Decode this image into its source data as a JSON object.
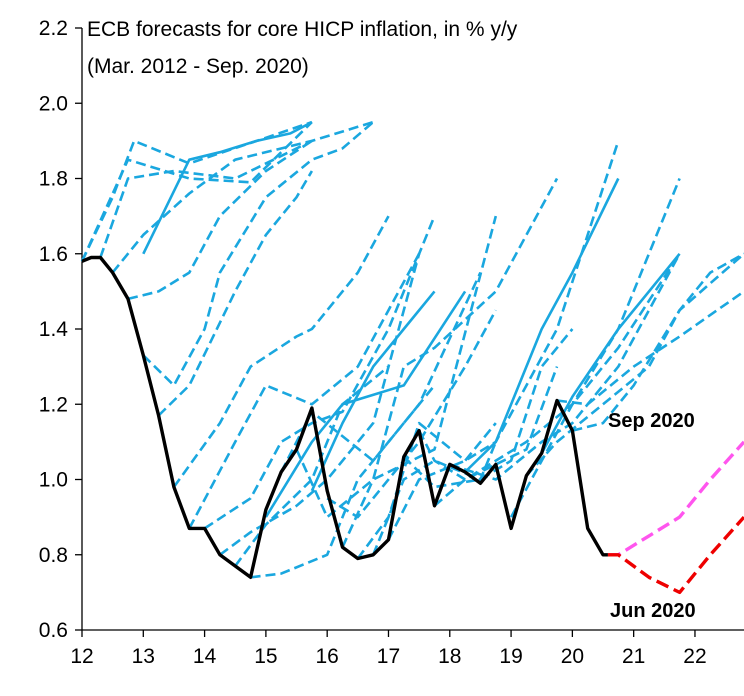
{
  "chart_data": {
    "type": "line",
    "title": "ECB forecasts for core HICP inflation, in % y/y",
    "subtitle": "(Mar. 2012 - Sep. 2020)",
    "xlim": [
      12,
      22.8
    ],
    "ylim": [
      0.6,
      2.2
    ],
    "x_ticks": [
      12,
      13,
      14,
      15,
      16,
      17,
      18,
      19,
      20,
      21,
      22
    ],
    "x_tick_labels": [
      "12",
      "13",
      "14",
      "15",
      "16",
      "17",
      "18",
      "19",
      "20",
      "21",
      "22"
    ],
    "y_ticks": [
      0.6,
      0.8,
      1.0,
      1.2,
      1.4,
      1.6,
      1.8,
      2.0,
      2.2
    ],
    "y_tick_labels": [
      "0.6",
      "0.8",
      "1.0",
      "1.2",
      "1.4",
      "1.6",
      "1.8",
      "2.0",
      "2.2"
    ],
    "grid": false,
    "colors": {
      "actual": "#000000",
      "forecast": "#1aa7df",
      "sep2020": "#ff55ee",
      "jun2020": "#ee0000"
    },
    "annotations": [
      {
        "text": "Sep 2020",
        "color": "#ff55ee"
      },
      {
        "text": "Jun 2020",
        "color": "#ee0000"
      }
    ],
    "series": [
      {
        "style": "actual",
        "x": [
          12.0,
          12.15,
          12.3,
          12.5,
          12.75,
          13.0,
          13.25,
          13.5,
          13.75,
          14.0,
          14.25,
          14.5,
          14.75,
          15.0,
          15.25,
          15.5,
          15.75,
          16.0,
          16.25,
          16.5,
          16.75,
          17.0,
          17.25,
          17.5,
          17.75,
          18.0,
          18.25,
          18.5,
          18.75,
          19.0,
          19.25,
          19.5,
          19.75,
          20.0,
          20.25,
          20.5,
          20.58
        ],
        "y": [
          1.58,
          1.59,
          1.59,
          1.55,
          1.48,
          1.33,
          1.17,
          0.98,
          0.87,
          0.87,
          0.8,
          0.77,
          0.74,
          0.92,
          1.02,
          1.08,
          1.19,
          0.97,
          0.82,
          0.79,
          0.8,
          0.84,
          1.06,
          1.13,
          0.93,
          1.04,
          1.02,
          0.99,
          1.04,
          0.87,
          1.01,
          1.07,
          1.21,
          1.13,
          0.87,
          0.8,
          0.8
        ]
      },
      {
        "style": "forecast-dashed",
        "x": [
          12.0,
          12.5,
          12.85,
          13.75,
          14.85,
          15.75
        ],
        "y": [
          1.58,
          1.75,
          1.9,
          1.84,
          1.9,
          1.95
        ]
      },
      {
        "style": "forecast-dashed",
        "x": [
          12.0,
          12.75,
          13.75,
          14.75,
          15.75
        ],
        "y": [
          1.58,
          1.85,
          1.8,
          1.79,
          1.95
        ]
      },
      {
        "style": "forecast-dashed",
        "x": [
          12.3,
          12.75,
          13.5,
          14.5,
          15.75
        ],
        "y": [
          1.59,
          1.8,
          1.82,
          1.8,
          1.9
        ]
      },
      {
        "style": "forecast-dashed",
        "x": [
          12.5,
          13.0,
          13.75,
          14.5,
          15.75,
          16.75
        ],
        "y": [
          1.55,
          1.65,
          1.76,
          1.85,
          1.9,
          1.95
        ]
      },
      {
        "style": "forecast-dashed",
        "x": [
          12.75,
          13.25,
          13.75,
          14.25,
          15.0,
          15.75
        ],
        "y": [
          1.48,
          1.5,
          1.55,
          1.7,
          1.82,
          1.9
        ]
      },
      {
        "style": "forecast-dashed",
        "x": [
          13.0,
          13.5,
          14.0,
          14.25,
          15.0,
          15.75,
          16.25,
          16.75
        ],
        "y": [
          1.33,
          1.25,
          1.4,
          1.55,
          1.75,
          1.85,
          1.88,
          1.95
        ]
      },
      {
        "style": "forecast-solid",
        "x": [
          13.0,
          13.75,
          14.25,
          14.85,
          15.4,
          15.75
        ],
        "y": [
          1.6,
          1.85,
          1.87,
          1.9,
          1.92,
          1.95
        ]
      },
      {
        "style": "forecast-dashed",
        "x": [
          13.25,
          13.75,
          14.5,
          15.0,
          15.5,
          15.75
        ],
        "y": [
          1.17,
          1.25,
          1.5,
          1.65,
          1.75,
          1.82
        ]
      },
      {
        "style": "forecast-dashed",
        "x": [
          13.5,
          14.25,
          14.75,
          15.5,
          15.75,
          16.5,
          17.0
        ],
        "y": [
          0.98,
          1.15,
          1.3,
          1.38,
          1.4,
          1.55,
          1.7
        ]
      },
      {
        "style": "forecast-dashed",
        "x": [
          13.75,
          14.5,
          15.0,
          15.75,
          16.5,
          17.0,
          17.5
        ],
        "y": [
          0.87,
          1.1,
          1.25,
          1.2,
          1.3,
          1.45,
          1.6
        ]
      },
      {
        "style": "forecast-dashed",
        "x": [
          14.0,
          14.75,
          15.25,
          15.75,
          16.25,
          17.0,
          17.75
        ],
        "y": [
          0.87,
          0.95,
          1.1,
          1.15,
          1.18,
          1.4,
          1.7
        ]
      },
      {
        "style": "forecast-dashed",
        "x": [
          14.25,
          14.75,
          15.5,
          16.0,
          16.75,
          17.5
        ],
        "y": [
          0.8,
          0.86,
          0.93,
          1.0,
          1.15,
          1.6
        ]
      },
      {
        "style": "forecast-dashed",
        "x": [
          14.5,
          15.0,
          15.75,
          16.25,
          17.0
        ],
        "y": [
          0.77,
          0.88,
          1.0,
          1.2,
          1.3
        ]
      },
      {
        "style": "forecast-dashed",
        "x": [
          14.75,
          15.25,
          16.0,
          16.5,
          17.25,
          17.75
        ],
        "y": [
          0.74,
          0.75,
          0.8,
          1.0,
          1.15,
          1.25
        ]
      },
      {
        "style": "forecast-solid",
        "x": [
          15.0,
          15.75,
          16.25,
          17.25,
          18.25
        ],
        "y": [
          0.9,
          1.1,
          1.2,
          1.25,
          1.5
        ]
      },
      {
        "style": "forecast-dashed",
        "x": [
          15.25,
          15.75,
          16.75,
          17.5,
          18.5
        ],
        "y": [
          1.02,
          1.18,
          1.05,
          1.2,
          1.55
        ]
      },
      {
        "style": "forecast-dashed",
        "x": [
          15.5,
          16.0,
          16.75,
          17.75,
          18.75
        ],
        "y": [
          1.08,
          0.9,
          1.0,
          1.08,
          1.7
        ]
      },
      {
        "style": "forecast-solid",
        "x": [
          15.75,
          16.25,
          16.75,
          17.25,
          17.75
        ],
        "y": [
          0.97,
          1.15,
          1.3,
          1.4,
          1.5
        ]
      },
      {
        "style": "forecast-dashed",
        "x": [
          16.0,
          16.5,
          17.5,
          18.25,
          18.75
        ],
        "y": [
          0.95,
          0.9,
          1.1,
          1.3,
          1.45
        ]
      },
      {
        "style": "forecast-dashed",
        "x": [
          16.25,
          16.75,
          17.25,
          17.75,
          18.75,
          19.75
        ],
        "y": [
          0.82,
          1.0,
          1.3,
          1.35,
          1.5,
          1.8
        ]
      },
      {
        "style": "forecast-dashed",
        "x": [
          16.5,
          17.0,
          17.5,
          18.25,
          18.75
        ],
        "y": [
          0.79,
          0.9,
          1.15,
          1.05,
          1.15
        ]
      },
      {
        "style": "forecast-dashed",
        "x": [
          16.75,
          17.25,
          17.75,
          18.5,
          18.75
        ],
        "y": [
          0.8,
          1.0,
          1.05,
          1.0,
          1.1
        ]
      },
      {
        "style": "forecast-dashed",
        "x": [
          17.0,
          17.5,
          18.25,
          18.75,
          19.75,
          20.75
        ],
        "y": [
          0.84,
          1.0,
          1.05,
          1.1,
          1.4,
          1.9
        ]
      },
      {
        "style": "forecast-dashed",
        "x": [
          17.25,
          17.75,
          18.5,
          19.0,
          19.5,
          20.0
        ],
        "y": [
          1.06,
          0.98,
          1.0,
          1.05,
          1.3,
          1.4
        ]
      },
      {
        "style": "forecast-dashed",
        "x": [
          17.5,
          17.75,
          18.25,
          19.25,
          19.75
        ],
        "y": [
          1.13,
          1.05,
          1.0,
          1.08,
          1.3
        ]
      },
      {
        "style": "forecast-dashed",
        "x": [
          17.75,
          18.25,
          19.25,
          20.0,
          20.75,
          21.75
        ],
        "y": [
          0.93,
          1.0,
          1.1,
          1.2,
          1.4,
          1.8
        ]
      },
      {
        "style": "forecast-dashed",
        "x": [
          18.0,
          18.75,
          19.5,
          20.0,
          20.75,
          21.75
        ],
        "y": [
          1.04,
          1.0,
          1.1,
          1.15,
          1.3,
          1.6
        ]
      },
      {
        "style": "forecast-solid",
        "x": [
          18.25,
          18.75,
          19.5,
          20.0,
          20.75
        ],
        "y": [
          1.02,
          1.1,
          1.4,
          1.55,
          1.8
        ]
      },
      {
        "style": "forecast-dashed",
        "x": [
          19.0,
          19.5,
          20.0,
          20.75,
          21.75
        ],
        "y": [
          0.9,
          1.05,
          1.2,
          1.35,
          1.6
        ]
      },
      {
        "style": "forecast-dashed",
        "x": [
          19.25,
          19.75,
          20.5,
          21.25,
          21.75,
          22.8
        ],
        "y": [
          1.01,
          1.1,
          1.2,
          1.3,
          1.45,
          1.6
        ]
      },
      {
        "style": "forecast-solid",
        "x": [
          19.5,
          20.0,
          20.75,
          21.25,
          21.75
        ],
        "y": [
          1.07,
          1.22,
          1.4,
          1.5,
          1.6
        ]
      },
      {
        "style": "forecast-dashed",
        "x": [
          19.75,
          20.25,
          21.0,
          21.75,
          22.8
        ],
        "y": [
          1.21,
          1.2,
          1.3,
          1.38,
          1.5
        ]
      },
      {
        "style": "forecast-dashed",
        "x": [
          20.0,
          20.5,
          21.0,
          21.75,
          22.25,
          22.8
        ],
        "y": [
          1.13,
          1.15,
          1.25,
          1.45,
          1.55,
          1.6
        ]
      },
      {
        "style": "sep2020",
        "x": [
          20.58,
          20.75,
          21.25,
          21.75,
          22.25,
          22.8
        ],
        "y": [
          0.8,
          0.8,
          0.85,
          0.9,
          1.0,
          1.1
        ]
      },
      {
        "style": "jun2020",
        "x": [
          20.58,
          20.75,
          21.25,
          21.75,
          22.25,
          22.8
        ],
        "y": [
          0.8,
          0.8,
          0.74,
          0.7,
          0.8,
          0.9
        ]
      }
    ]
  }
}
